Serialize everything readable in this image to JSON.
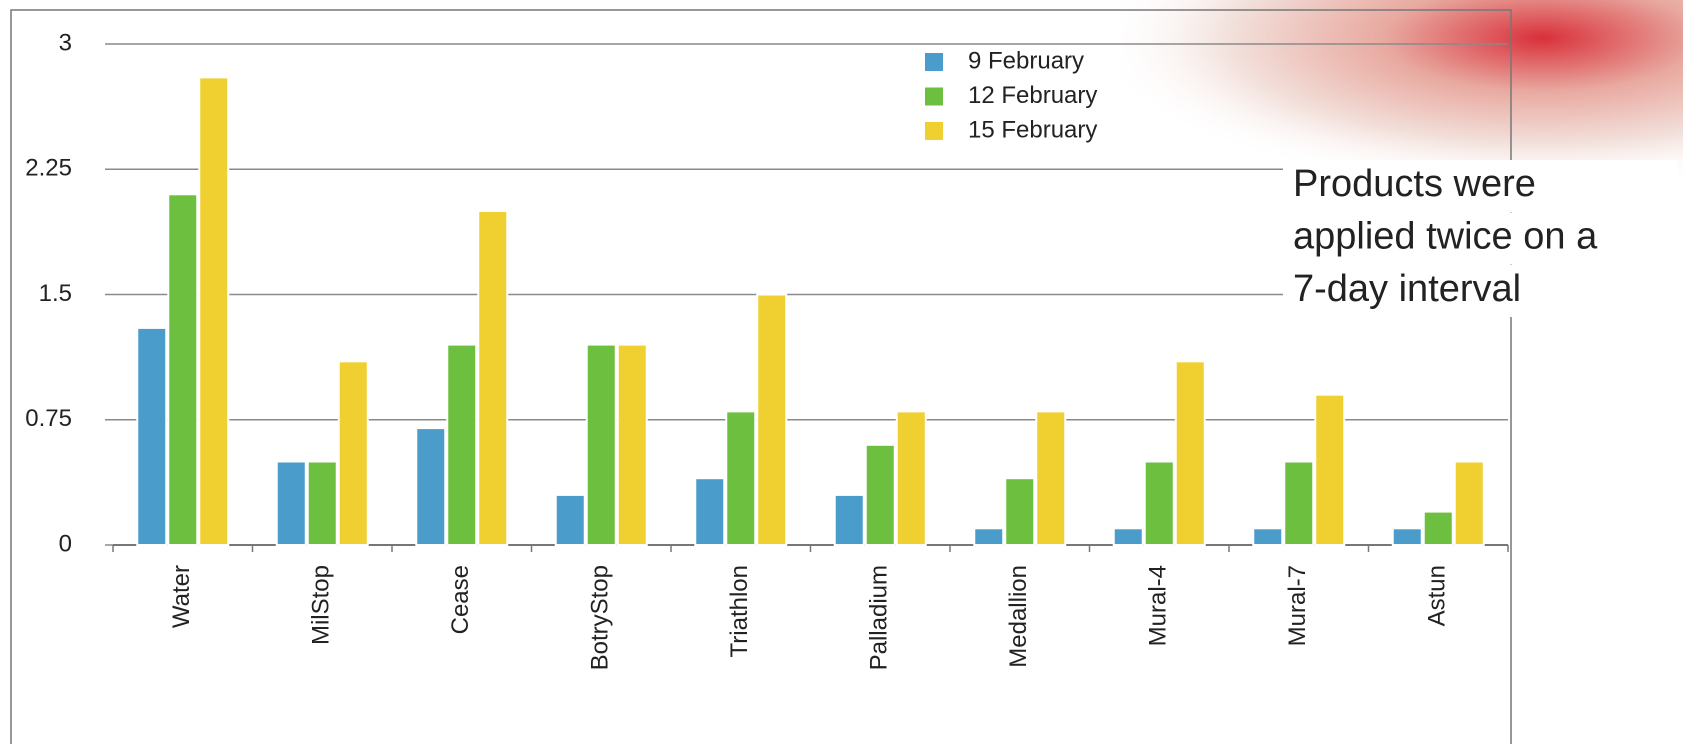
{
  "chart_data": {
    "type": "bar",
    "categories": [
      "Water",
      "MilStop",
      "Cease",
      "BotryStop",
      "Triathlon",
      "Palladium",
      "Medallion",
      "Mural-4",
      "Mural-7",
      "Astun"
    ],
    "series": [
      {
        "name": "9 February",
        "color": "#4a9ccb",
        "values": [
          1.3,
          0.5,
          0.7,
          0.3,
          0.4,
          0.3,
          0.1,
          0.1,
          0.1,
          0.1
        ]
      },
      {
        "name": "12 February",
        "color": "#6cbf3f",
        "values": [
          2.1,
          0.5,
          1.2,
          1.2,
          0.8,
          0.6,
          0.4,
          0.5,
          0.5,
          0.2
        ]
      },
      {
        "name": "15 February",
        "color": "#f0cf30",
        "values": [
          2.8,
          1.1,
          2.0,
          1.2,
          1.5,
          0.8,
          0.8,
          1.1,
          0.9,
          0.5
        ]
      }
    ],
    "ylim": [
      0,
      3
    ],
    "yticks": [
      0,
      0.75,
      1.5,
      2.25,
      3
    ],
    "grid": true,
    "legend": "top",
    "annotation": [
      "Products were",
      "applied twice on a",
      "7-day interval"
    ]
  }
}
